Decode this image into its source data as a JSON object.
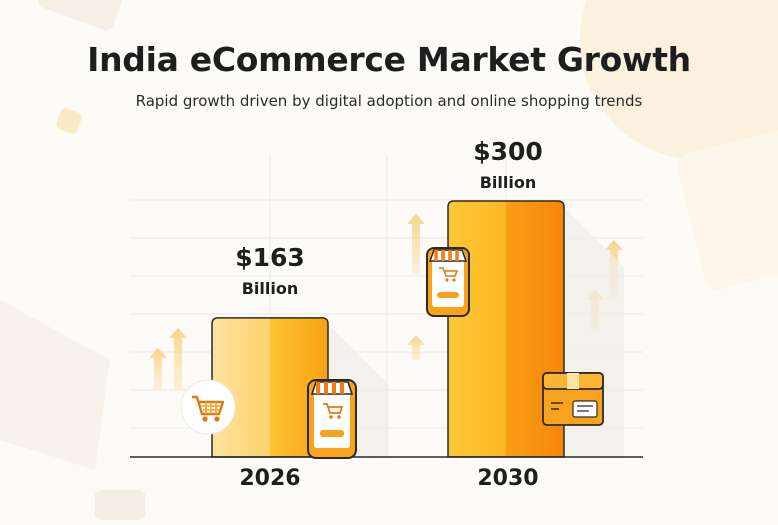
{
  "title": "India eCommerce Market Growth",
  "subtitle": "Rapid growth driven by digital adoption and online shopping trends",
  "colors": {
    "bar_light": "#fccf50",
    "bar_mid": "#fbb81f",
    "bar_dark": "#f88e0f",
    "bar_first_light": "#fde08c",
    "text": "#1e1e1e",
    "grid": "#e6e4e0"
  },
  "icons": [
    "shopping-cart-icon",
    "mobile-store-icon",
    "delivery-box-icon",
    "growth-arrow-icon"
  ],
  "chart_data": {
    "type": "bar",
    "categories": [
      "2026",
      "2030"
    ],
    "values": [
      163,
      300
    ],
    "value_labels": [
      {
        "amount": "$163",
        "unit": "Billion"
      },
      {
        "amount": "$300",
        "unit": "Billion"
      }
    ],
    "ylim": [
      0,
      300
    ],
    "grid": true,
    "legend": "none"
  }
}
